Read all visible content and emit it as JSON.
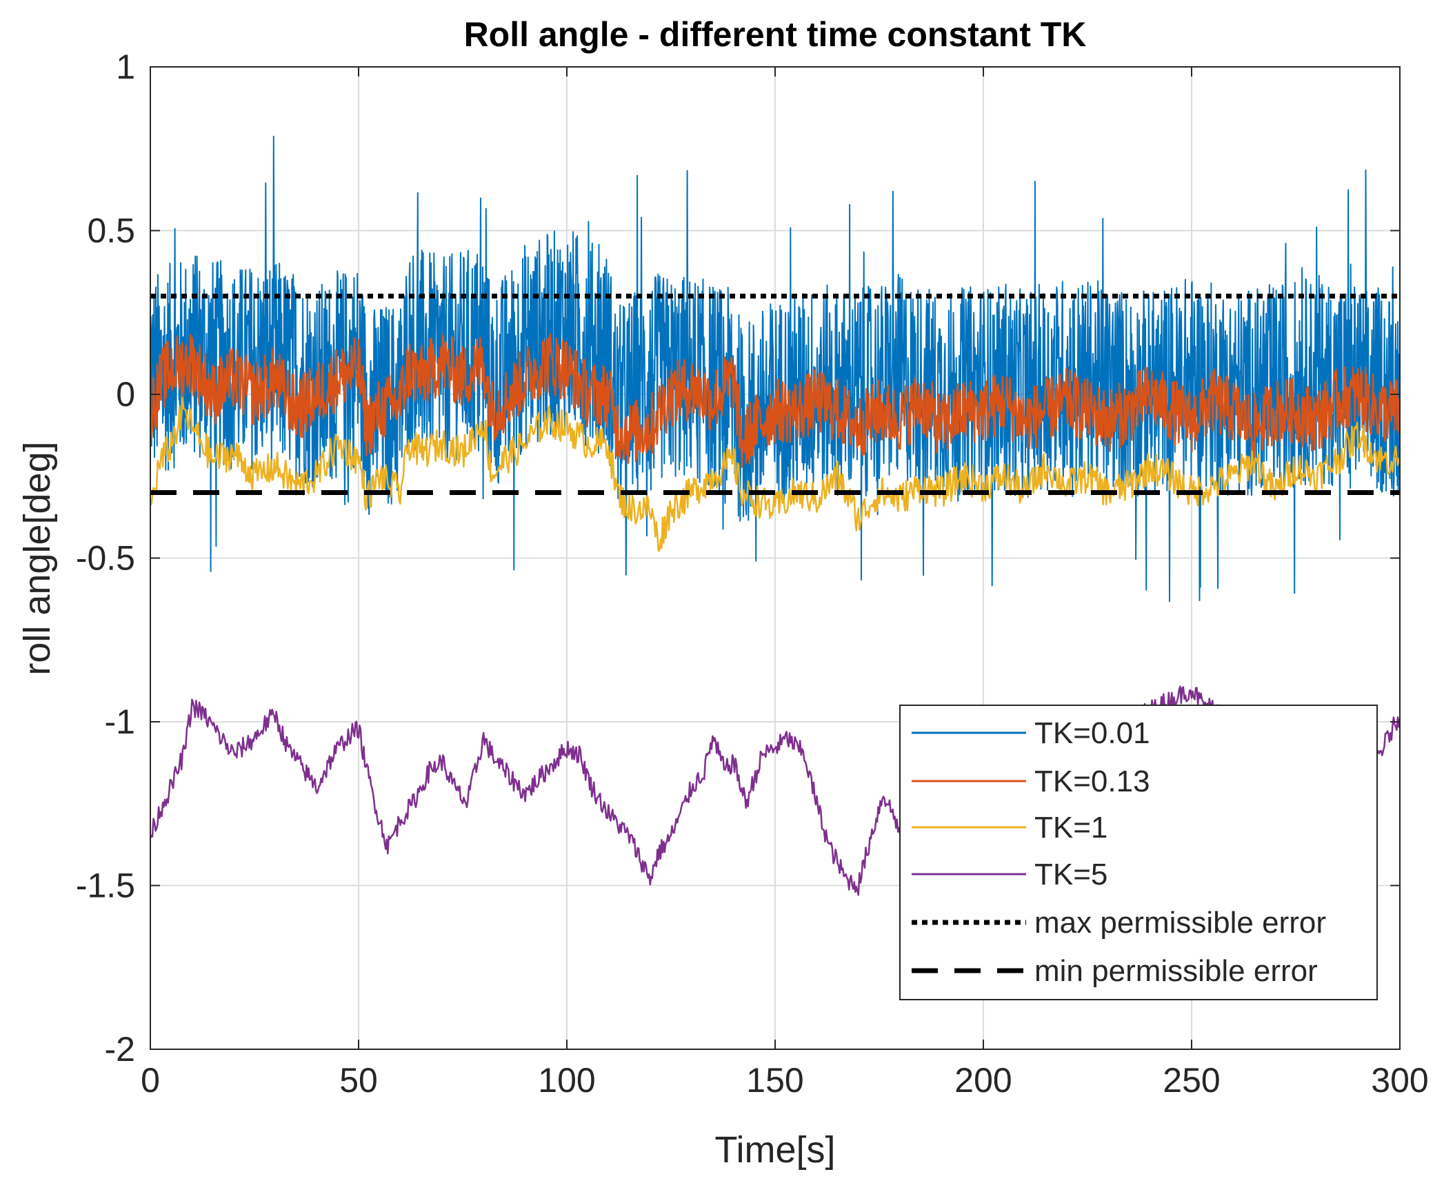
{
  "chart_data": {
    "type": "line",
    "title": "Roll angle - different time constant TK",
    "xlabel": "Time[s]",
    "ylabel": "roll angle[deg]",
    "xlim": [
      0,
      300
    ],
    "ylim": [
      -2,
      1
    ],
    "grid": true,
    "x_ticks": [
      0,
      50,
      100,
      150,
      200,
      250,
      300
    ],
    "y_ticks": [
      1,
      0.5,
      0,
      -0.5,
      -1,
      -1.5,
      -2
    ],
    "x_tick_labels": [
      "0",
      "50",
      "100",
      "150",
      "200",
      "250",
      "300"
    ],
    "y_tick_labels": [
      "1",
      "0.5",
      "0",
      "-0.5",
      "-1",
      "-1.5",
      "-2"
    ],
    "legend_position": "bottom-right",
    "series": [
      {
        "name": "TK=0.01",
        "color": "#0072BD",
        "style": "solid",
        "x": [
          0,
          10,
          20,
          30,
          40,
          50,
          52,
          60,
          62,
          70,
          80,
          82,
          90,
          100,
          110,
          112,
          120,
          130,
          140,
          142,
          150,
          160,
          170,
          180,
          190,
          200,
          210,
          220,
          230,
          240,
          250,
          260,
          270,
          280,
          290,
          300
        ],
        "y": [
          0.05,
          0.12,
          0.08,
          0.1,
          0.02,
          0.1,
          -0.05,
          -0.02,
          0.15,
          0.1,
          0.15,
          0.0,
          0.15,
          0.2,
          0.12,
          -0.05,
          0.05,
          0.05,
          0.0,
          -0.1,
          -0.02,
          0.02,
          0.0,
          0.05,
          0.0,
          0.02,
          0.0,
          0.05,
          0.02,
          0.0,
          0.05,
          0.0,
          0.02,
          0.05,
          0.02,
          0.0
        ],
        "noise_amplitude": 0.32
      },
      {
        "name": "TK=0.13",
        "color": "#D95319",
        "style": "solid",
        "x": [
          0,
          3,
          5,
          10,
          15,
          20,
          25,
          30,
          35,
          40,
          45,
          50,
          52,
          55,
          60,
          62,
          65,
          70,
          75,
          80,
          82,
          85,
          90,
          95,
          100,
          105,
          110,
          112,
          115,
          120,
          125,
          130,
          135,
          140,
          142,
          145,
          150,
          155,
          160,
          165,
          170,
          175,
          180,
          185,
          190,
          195,
          200,
          205,
          210,
          215,
          220,
          225,
          230,
          235,
          240,
          245,
          250,
          255,
          260,
          265,
          270,
          275,
          280,
          285,
          290,
          295,
          300
        ],
        "y": [
          -0.05,
          0.05,
          0.08,
          0.1,
          0.0,
          0.05,
          0.0,
          0.05,
          -0.05,
          0.0,
          0.05,
          0.08,
          -0.1,
          -0.05,
          -0.02,
          0.08,
          0.05,
          0.1,
          0.05,
          0.1,
          -0.05,
          -0.02,
          0.05,
          0.1,
          0.08,
          0.0,
          0.0,
          -0.1,
          -0.12,
          -0.1,
          0.0,
          0.02,
          -0.02,
          0.05,
          -0.15,
          -0.1,
          -0.05,
          -0.05,
          -0.02,
          -0.05,
          -0.1,
          -0.05,
          -0.08,
          -0.02,
          -0.1,
          -0.05,
          -0.05,
          -0.02,
          -0.08,
          -0.05,
          -0.02,
          -0.05,
          -0.08,
          -0.05,
          0.0,
          -0.05,
          -0.08,
          -0.02,
          -0.05,
          -0.1,
          -0.05,
          -0.05,
          -0.08,
          -0.02,
          0.0,
          -0.05,
          -0.05
        ],
        "noise_amplitude": 0.1
      },
      {
        "name": "TK=1",
        "color": "#EDB120",
        "style": "solid",
        "x": [
          0,
          2,
          5,
          8,
          10,
          15,
          20,
          25,
          30,
          35,
          40,
          45,
          48,
          50,
          52,
          55,
          60,
          62,
          65,
          70,
          75,
          78,
          80,
          82,
          85,
          90,
          95,
          100,
          105,
          110,
          112,
          115,
          120,
          122,
          125,
          130,
          135,
          140,
          142,
          145,
          150,
          155,
          160,
          165,
          170,
          175,
          180,
          185,
          190,
          195,
          200,
          205,
          210,
          215,
          220,
          225,
          230,
          235,
          240,
          245,
          250,
          255,
          260,
          265,
          270,
          275,
          280,
          285,
          290,
          295,
          300
        ],
        "y": [
          -0.35,
          -0.22,
          -0.15,
          -0.05,
          -0.1,
          -0.2,
          -0.18,
          -0.25,
          -0.22,
          -0.28,
          -0.25,
          -0.15,
          -0.18,
          -0.2,
          -0.32,
          -0.25,
          -0.3,
          -0.15,
          -0.18,
          -0.15,
          -0.18,
          -0.12,
          -0.08,
          -0.25,
          -0.2,
          -0.15,
          -0.08,
          -0.1,
          -0.15,
          -0.15,
          -0.3,
          -0.35,
          -0.35,
          -0.45,
          -0.35,
          -0.3,
          -0.25,
          -0.2,
          -0.3,
          -0.32,
          -0.35,
          -0.3,
          -0.32,
          -0.25,
          -0.38,
          -0.3,
          -0.32,
          -0.28,
          -0.3,
          -0.25,
          -0.28,
          -0.25,
          -0.3,
          -0.22,
          -0.28,
          -0.25,
          -0.3,
          -0.28,
          -0.22,
          -0.25,
          -0.3,
          -0.28,
          -0.25,
          -0.2,
          -0.3,
          -0.22,
          -0.25,
          -0.2,
          -0.12,
          -0.2,
          -0.2
        ],
        "noise_amplitude": 0.05
      },
      {
        "name": "TK=5",
        "color": "#7E2F8E",
        "style": "solid",
        "x": [
          0,
          3,
          5,
          8,
          10,
          13,
          17,
          20,
          25,
          28,
          30,
          33,
          37,
          40,
          44,
          47,
          50,
          52,
          55,
          57,
          60,
          63,
          67,
          70,
          73,
          76,
          78,
          80,
          82,
          85,
          90,
          95,
          100,
          103,
          106,
          110,
          115,
          120,
          122,
          125,
          130,
          133,
          135,
          138,
          140,
          143,
          147,
          150,
          153,
          157,
          160,
          163,
          167,
          170,
          173,
          176,
          179,
          180,
          250,
          253,
          295,
          300
        ],
        "y": [
          -1.35,
          -1.25,
          -1.2,
          -1.1,
          -0.95,
          -0.98,
          -1.05,
          -1.1,
          -1.05,
          -1.0,
          -0.98,
          -1.08,
          -1.15,
          -1.2,
          -1.1,
          -1.05,
          -1.02,
          -1.15,
          -1.3,
          -1.38,
          -1.3,
          -1.25,
          -1.15,
          -1.12,
          -1.2,
          -1.25,
          -1.15,
          -1.05,
          -1.1,
          -1.15,
          -1.22,
          -1.15,
          -1.08,
          -1.1,
          -1.2,
          -1.28,
          -1.35,
          -1.48,
          -1.4,
          -1.35,
          -1.2,
          -1.15,
          -1.05,
          -1.15,
          -1.12,
          -1.25,
          -1.1,
          -1.08,
          -1.05,
          -1.1,
          -1.25,
          -1.38,
          -1.48,
          -1.5,
          -1.35,
          -1.22,
          -1.3,
          -1.35,
          -0.9,
          -0.95,
          -1.1,
          -0.98
        ],
        "noise_amplitude": 0.03
      },
      {
        "name": "max permissible error",
        "color": "#000000",
        "style": "dotted",
        "x": [
          0,
          300
        ],
        "y": [
          0.3,
          0.3
        ]
      },
      {
        "name": "min permissible error",
        "color": "#000000",
        "style": "dashed",
        "x": [
          0,
          300
        ],
        "y": [
          -0.3,
          -0.3
        ]
      }
    ]
  }
}
